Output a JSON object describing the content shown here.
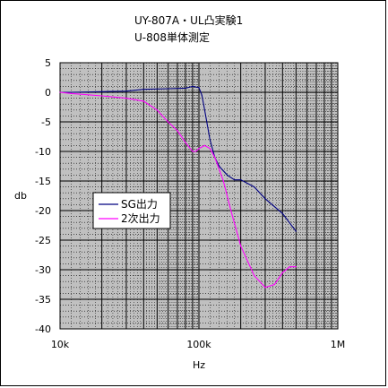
{
  "chart_data": {
    "type": "line",
    "title": "UY-807A・UL凸実験1",
    "subtitle": "U-808単体測定",
    "xlabel": "Hz",
    "ylabel": "db",
    "xscale": "log",
    "xlim": [
      10000,
      1000000
    ],
    "ylim": [
      -40,
      5
    ],
    "y_ticks": [
      "5",
      "0",
      "-5",
      "-10",
      "-15",
      "-20",
      "-25",
      "-30",
      "-35",
      "-40"
    ],
    "x_ticks": [
      "10k",
      "100k",
      "1M"
    ],
    "grid": true,
    "plot_background": "#c0c0c0",
    "legend_position": "center-left",
    "series": [
      {
        "name": "SG出力",
        "color": "#000080",
        "x": [
          10000,
          12000,
          20000,
          30000,
          40000,
          60000,
          80000,
          90000,
          100000,
          105000,
          110000,
          120000,
          130000,
          140000,
          160000,
          180000,
          200000,
          250000,
          300000,
          400000,
          500000
        ],
        "y": [
          0.0,
          0.0,
          0.1,
          0.2,
          0.5,
          0.6,
          0.7,
          1.0,
          0.8,
          -0.5,
          -3.0,
          -8.0,
          -11.0,
          -12.5,
          -14.0,
          -14.8,
          -14.8,
          -16.0,
          -18.0,
          -20.5,
          -23.5
        ]
      },
      {
        "name": "2次出力",
        "color": "#ff00ff",
        "x": [
          10000,
          12000,
          20000,
          30000,
          40000,
          50000,
          60000,
          70000,
          80000,
          90000,
          95000,
          100000,
          110000,
          120000,
          130000,
          150000,
          170000,
          200000,
          250000,
          300000,
          350000,
          400000,
          450000,
          500000
        ],
        "y": [
          0.0,
          -0.2,
          -0.6,
          -1.0,
          -1.5,
          -3.0,
          -5.0,
          -6.5,
          -8.5,
          -10.0,
          -10.0,
          -9.5,
          -9.0,
          -9.5,
          -11.0,
          -15.0,
          -20.0,
          -26.0,
          -31.0,
          -33.0,
          -32.5,
          -30.5,
          -29.5,
          -29.5
        ]
      }
    ]
  }
}
